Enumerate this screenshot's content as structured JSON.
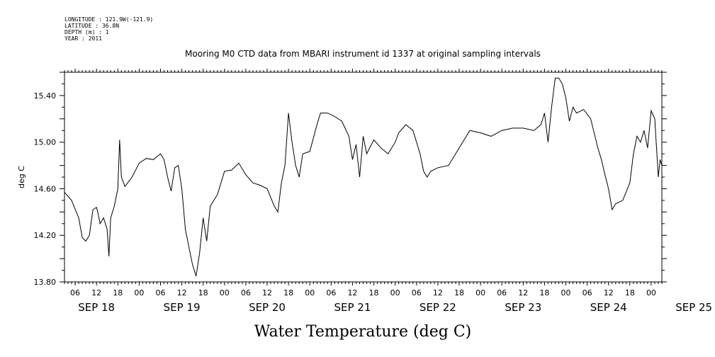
{
  "header": {
    "longitude": "LONGITUDE : 121.9W(-121.9)",
    "latitude": "LATITUDE : 36.8N",
    "depth": "DEPTH (m) : 1",
    "year": "YEAR : 2011"
  },
  "chart_data": {
    "type": "line",
    "title": "Mooring M0 CTD data from MBARI instrument id 1337 at original sampling intervals",
    "xlabel": "Water Temperature (deg C)",
    "ylabel": "deg C",
    "ylim": [
      13.8,
      15.6
    ],
    "xlim": [
      "2011-09-18T03:00",
      "2011-09-25T03:00"
    ],
    "yticks": [
      "13.80",
      "14.20",
      "14.60",
      "15.00",
      "15.40"
    ],
    "xtick_hours": [
      "06",
      "12",
      "18",
      "00",
      "06",
      "12",
      "18",
      "00",
      "06",
      "12",
      "18",
      "00",
      "06",
      "12",
      "18",
      "00",
      "06",
      "12",
      "18",
      "00",
      "06",
      "12",
      "18",
      "00",
      "06",
      "12",
      "18",
      "00"
    ],
    "day_labels": [
      "SEP 18",
      "SEP 19",
      "SEP 20",
      "SEP 21",
      "SEP 22",
      "SEP 23",
      "SEP 24",
      "SEP 25"
    ],
    "grid": false,
    "series": [
      {
        "x": [
          "2011-09-18T03:00",
          "2011-09-18T05:00",
          "2011-09-18T07:00",
          "2011-09-18T08:00",
          "2011-09-18T09:00",
          "2011-09-18T10:00",
          "2011-09-18T11:00",
          "2011-09-18T12:00",
          "2011-09-18T12:30",
          "2011-09-18T13:00",
          "2011-09-18T14:00",
          "2011-09-18T15:00",
          "2011-09-18T15:30",
          "2011-09-18T16:00",
          "2011-09-18T17:00",
          "2011-09-18T18:00",
          "2011-09-18T18:30",
          "2011-09-18T19:00",
          "2011-09-18T20:00",
          "2011-09-18T22:00",
          "2011-09-19T00:00",
          "2011-09-19T02:00",
          "2011-09-19T04:00",
          "2011-09-19T06:00",
          "2011-09-19T07:00",
          "2011-09-19T08:00",
          "2011-09-19T09:00",
          "2011-09-19T10:00",
          "2011-09-19T11:00",
          "2011-09-19T12:00",
          "2011-09-19T13:00",
          "2011-09-19T14:00",
          "2011-09-19T15:00",
          "2011-09-19T16:00",
          "2011-09-19T17:00",
          "2011-09-19T18:00",
          "2011-09-19T19:00",
          "2011-09-19T20:00",
          "2011-09-19T22:00",
          "2011-09-20T00:00",
          "2011-09-20T02:00",
          "2011-09-20T04:00",
          "2011-09-20T06:00",
          "2011-09-20T08:00",
          "2011-09-20T10:00",
          "2011-09-20T12:00",
          "2011-09-20T14:00",
          "2011-09-20T15:00",
          "2011-09-20T16:00",
          "2011-09-20T17:00",
          "2011-09-20T18:00",
          "2011-09-20T19:00",
          "2011-09-20T20:00",
          "2011-09-20T21:00",
          "2011-09-20T22:00",
          "2011-09-21T00:00",
          "2011-09-21T02:00",
          "2011-09-21T03:00",
          "2011-09-21T05:00",
          "2011-09-21T07:00",
          "2011-09-21T09:00",
          "2011-09-21T11:00",
          "2011-09-21T12:00",
          "2011-09-21T13:00",
          "2011-09-21T14:00",
          "2011-09-21T15:00",
          "2011-09-21T16:00",
          "2011-09-21T18:00",
          "2011-09-21T20:00",
          "2011-09-21T22:00",
          "2011-09-22T00:00",
          "2011-09-22T01:00",
          "2011-09-22T03:00",
          "2011-09-22T05:00",
          "2011-09-22T07:00",
          "2011-09-22T08:00",
          "2011-09-22T09:00",
          "2011-09-22T10:00",
          "2011-09-22T12:00",
          "2011-09-22T15:00",
          "2011-09-22T18:00",
          "2011-09-22T21:00",
          "2011-09-23T00:00",
          "2011-09-23T03:00",
          "2011-09-23T06:00",
          "2011-09-23T09:00",
          "2011-09-23T12:00",
          "2011-09-23T15:00",
          "2011-09-23T17:00",
          "2011-09-23T18:00",
          "2011-09-23T19:00",
          "2011-09-23T20:00",
          "2011-09-23T21:00",
          "2011-09-23T22:00",
          "2011-09-23T23:00",
          "2011-09-24T00:00",
          "2011-09-24T01:00",
          "2011-09-24T02:00",
          "2011-09-24T03:00",
          "2011-09-24T05:00",
          "2011-09-24T07:00",
          "2011-09-24T09:00",
          "2011-09-24T10:00",
          "2011-09-24T11:00",
          "2011-09-24T12:00",
          "2011-09-24T13:00",
          "2011-09-24T14:00",
          "2011-09-24T16:00",
          "2011-09-24T18:00",
          "2011-09-24T19:00",
          "2011-09-24T20:00",
          "2011-09-24T21:00",
          "2011-09-24T22:00",
          "2011-09-24T23:00",
          "2011-09-25T00:00",
          "2011-09-25T01:00",
          "2011-09-25T02:00",
          "2011-09-25T02:30",
          "2011-09-25T03:00"
        ],
        "values": [
          14.57,
          14.5,
          14.35,
          14.18,
          14.15,
          14.2,
          14.42,
          14.44,
          14.38,
          14.3,
          14.35,
          14.25,
          14.02,
          14.35,
          14.45,
          14.6,
          15.02,
          14.7,
          14.62,
          14.7,
          14.82,
          14.86,
          14.85,
          14.9,
          14.85,
          14.7,
          14.58,
          14.78,
          14.8,
          14.6,
          14.25,
          14.1,
          13.95,
          13.85,
          14.05,
          14.35,
          14.15,
          14.45,
          14.55,
          14.75,
          14.76,
          14.82,
          14.72,
          14.65,
          14.63,
          14.6,
          14.45,
          14.4,
          14.65,
          14.8,
          15.25,
          15.0,
          14.8,
          14.7,
          14.9,
          14.92,
          15.15,
          15.25,
          15.25,
          15.22,
          15.18,
          15.05,
          14.85,
          14.98,
          14.7,
          15.05,
          14.9,
          15.02,
          14.95,
          14.9,
          15.0,
          15.08,
          15.15,
          15.1,
          14.9,
          14.75,
          14.7,
          14.75,
          14.78,
          14.8,
          14.95,
          15.1,
          15.08,
          15.05,
          15.1,
          15.12,
          15.12,
          15.1,
          15.15,
          15.25,
          15.0,
          15.3,
          15.55,
          15.55,
          15.5,
          15.38,
          15.18,
          15.3,
          15.25,
          15.28,
          15.2,
          14.95,
          14.85,
          14.72,
          14.6,
          14.42,
          14.47,
          14.5,
          14.65,
          14.9,
          15.05,
          15.0,
          15.1,
          14.95,
          15.27,
          15.2,
          14.7,
          14.85,
          14.8
        ]
      }
    ]
  }
}
